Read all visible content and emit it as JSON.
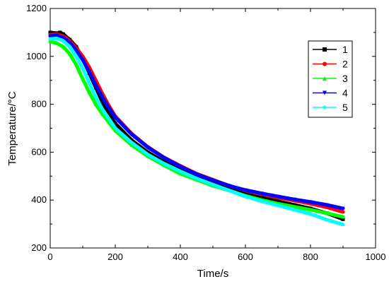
{
  "chart_data": {
    "type": "line",
    "xlabel": "Time/s",
    "ylabel": "Temperature/°C",
    "xlim": [
      0,
      1000
    ],
    "ylim": [
      200,
      1200
    ],
    "x_ticks": [
      0,
      200,
      400,
      600,
      800,
      1000
    ],
    "y_ticks": [
      200,
      400,
      600,
      800,
      1000,
      1200
    ],
    "grid": false,
    "legend_position": "top-right",
    "series": [
      {
        "name": "1",
        "color": "#000000",
        "marker": "square",
        "x": [
          0,
          20,
          30,
          40,
          60,
          80,
          100,
          120,
          140,
          160,
          180,
          200,
          250,
          300,
          350,
          400,
          450,
          500,
          550,
          600,
          650,
          700,
          750,
          800,
          850,
          900
        ],
        "y": [
          1100,
          1097,
          1100,
          1093,
          1070,
          1040,
          990,
          930,
          870,
          810,
          760,
          720,
          650,
          600,
          560,
          525,
          495,
          470,
          448,
          425,
          410,
          395,
          380,
          365,
          345,
          320
        ]
      },
      {
        "name": "2",
        "color": "#ff0000",
        "marker": "circle",
        "x": [
          0,
          20,
          40,
          60,
          80,
          100,
          120,
          140,
          160,
          180,
          200,
          250,
          300,
          350,
          400,
          450,
          500,
          550,
          600,
          650,
          700,
          750,
          800,
          850,
          900
        ],
        "y": [
          1090,
          1092,
          1085,
          1065,
          1035,
          1000,
          955,
          900,
          845,
          795,
          750,
          678,
          622,
          578,
          543,
          510,
          485,
          460,
          440,
          425,
          410,
          398,
          385,
          370,
          350
        ]
      },
      {
        "name": "3",
        "color": "#00ff00",
        "marker": "triangle-up",
        "x": [
          0,
          20,
          40,
          60,
          80,
          100,
          120,
          140,
          160,
          180,
          200,
          250,
          300,
          350,
          400,
          450,
          500,
          550,
          600,
          650,
          700,
          750,
          800,
          850,
          900
        ],
        "y": [
          1062,
          1055,
          1040,
          1010,
          965,
          905,
          850,
          800,
          760,
          725,
          690,
          630,
          583,
          545,
          510,
          485,
          460,
          440,
          418,
          400,
          385,
          372,
          360,
          345,
          330
        ]
      },
      {
        "name": "4",
        "color": "#0000ff",
        "marker": "triangle-down",
        "x": [
          0,
          20,
          40,
          60,
          80,
          100,
          120,
          140,
          160,
          180,
          200,
          250,
          300,
          350,
          400,
          450,
          500,
          550,
          600,
          650,
          700,
          750,
          800,
          850,
          900
        ],
        "y": [
          1085,
          1088,
          1078,
          1058,
          1025,
          985,
          935,
          880,
          830,
          785,
          745,
          675,
          620,
          577,
          540,
          508,
          483,
          460,
          442,
          428,
          415,
          403,
          392,
          380,
          365
        ]
      },
      {
        "name": "5",
        "color": "#00ffff",
        "marker": "diamond",
        "x": [
          0,
          20,
          40,
          60,
          80,
          100,
          120,
          140,
          160,
          180,
          200,
          250,
          300,
          350,
          400,
          450,
          500,
          550,
          600,
          650,
          700,
          750,
          800,
          850,
          900
        ],
        "y": [
          1073,
          1075,
          1065,
          1040,
          1000,
          950,
          890,
          830,
          780,
          740,
          700,
          640,
          590,
          552,
          520,
          490,
          465,
          440,
          415,
          395,
          378,
          360,
          342,
          318,
          298
        ]
      }
    ]
  }
}
